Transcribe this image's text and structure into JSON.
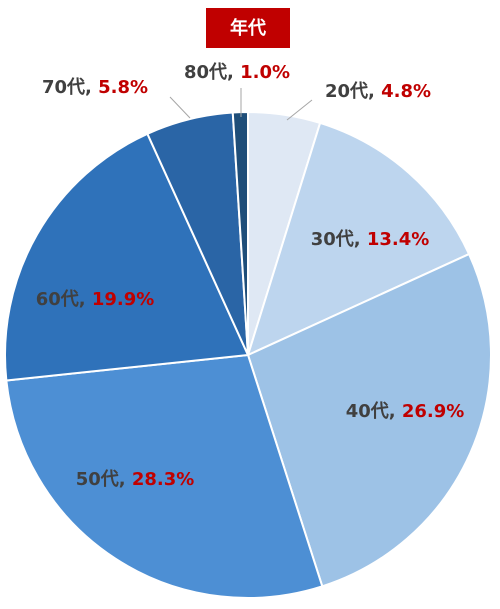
{
  "chart_data": {
    "type": "pie",
    "title": "年代",
    "categories": [
      "20代",
      "30代",
      "40代",
      "50代",
      "60代",
      "70代",
      "80代"
    ],
    "values": [
      4.8,
      13.4,
      26.9,
      28.3,
      19.9,
      5.8,
      1.0
    ],
    "value_labels": [
      "4.8%",
      "13.4%",
      "26.9%",
      "28.3%",
      "19.9%",
      "5.8%",
      "1.0%"
    ],
    "label_separator": ", ",
    "colors": [
      "#dfe8f4",
      "#bdd5ee",
      "#9dc2e6",
      "#4d8fd4",
      "#2f72ba",
      "#2a65a6",
      "#1f4e79"
    ]
  }
}
